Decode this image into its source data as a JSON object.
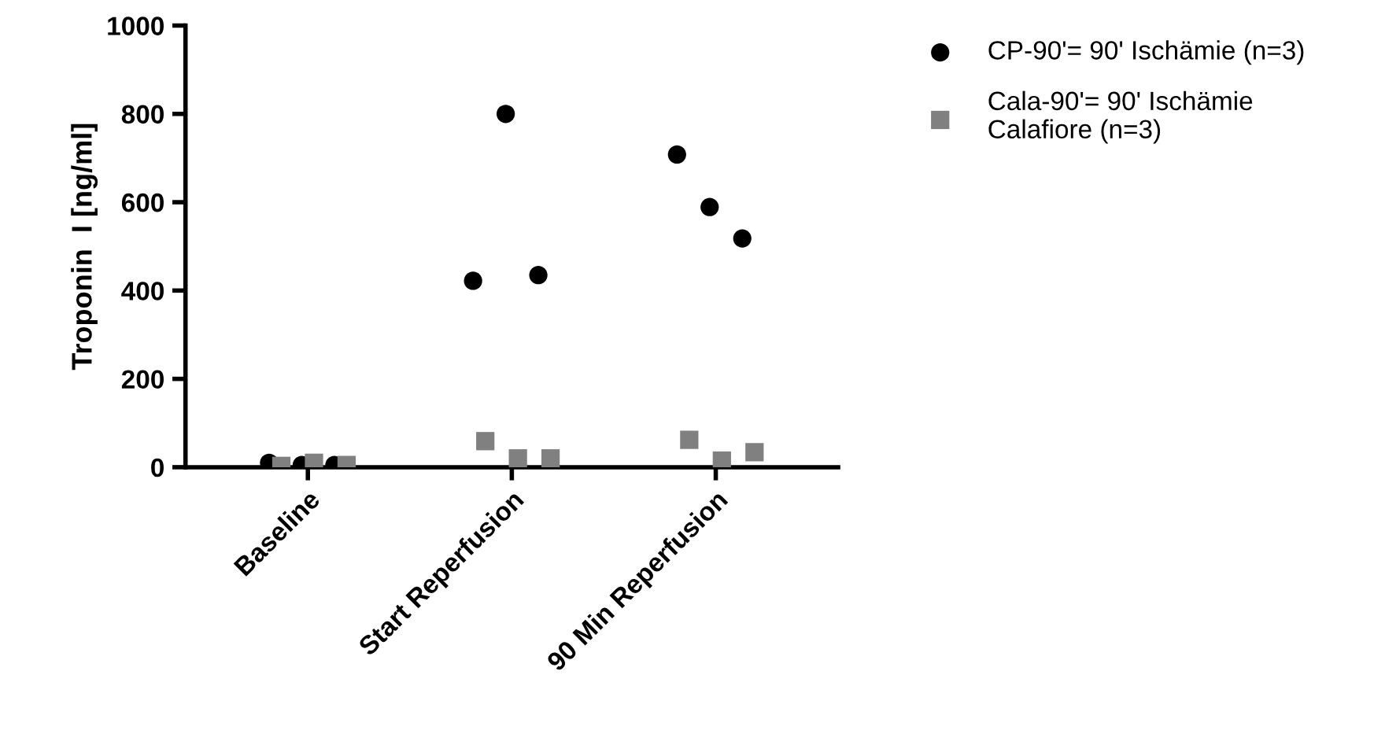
{
  "chart_data": {
    "type": "scatter",
    "ylabel": "Troponin  I [ng/ml]",
    "categories": [
      "Baseline",
      "Start Reperfusion",
      "90 Min Reperfusion"
    ],
    "ylim": [
      0,
      1000
    ],
    "yticks": [
      0,
      200,
      400,
      600,
      800,
      1000
    ],
    "grid": false,
    "legend": "top right",
    "series": [
      {
        "name": "CP-90'= 90' Ischämie (n=3)",
        "color": "#000000",
        "marker": "circle",
        "x": [
          "Baseline",
          "Baseline",
          "Baseline",
          "Start Reperfusion",
          "Start Reperfusion",
          "Start Reperfusion",
          "90 Min Reperfusion",
          "90 Min Reperfusion",
          "90 Min Reperfusion"
        ],
        "values": [
          10,
          5,
          5,
          422,
          800,
          435,
          708,
          589,
          518
        ]
      },
      {
        "name": "Cala-90'= 90' Ischämie\nCalafiore (n=3)",
        "color": "#808080",
        "marker": "square",
        "x": [
          "Baseline",
          "Baseline",
          "Baseline",
          "Start Reperfusion",
          "Start Reperfusion",
          "Start Reperfusion",
          "90 Min Reperfusion",
          "90 Min Reperfusion",
          "90 Min Reperfusion"
        ],
        "values": [
          3,
          10,
          5,
          59,
          20,
          20,
          62,
          15,
          34
        ]
      }
    ]
  }
}
